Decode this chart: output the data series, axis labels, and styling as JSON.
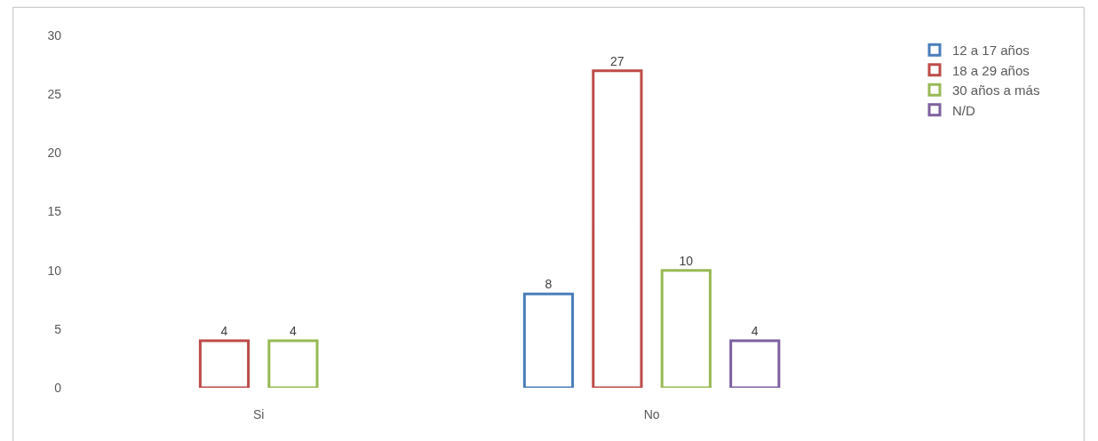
{
  "chart_data": {
    "type": "bar",
    "categories": [
      "Si",
      "No"
    ],
    "series": [
      {
        "name": "12 a 17 años",
        "color": "#4a7ebb",
        "values": [
          null,
          8
        ]
      },
      {
        "name": "18 a 29 años",
        "color": "#be4b48",
        "values": [
          4,
          27
        ]
      },
      {
        "name": "30 años a más",
        "color": "#98b954",
        "values": [
          4,
          10
        ]
      },
      {
        "name": "N/D",
        "color": "#7d60a0",
        "values": [
          null,
          4
        ]
      }
    ],
    "ylim": [
      0,
      30
    ],
    "yticks": [
      0,
      5,
      10,
      15,
      20,
      25,
      30
    ],
    "legend": "top right",
    "data_labels": true
  }
}
